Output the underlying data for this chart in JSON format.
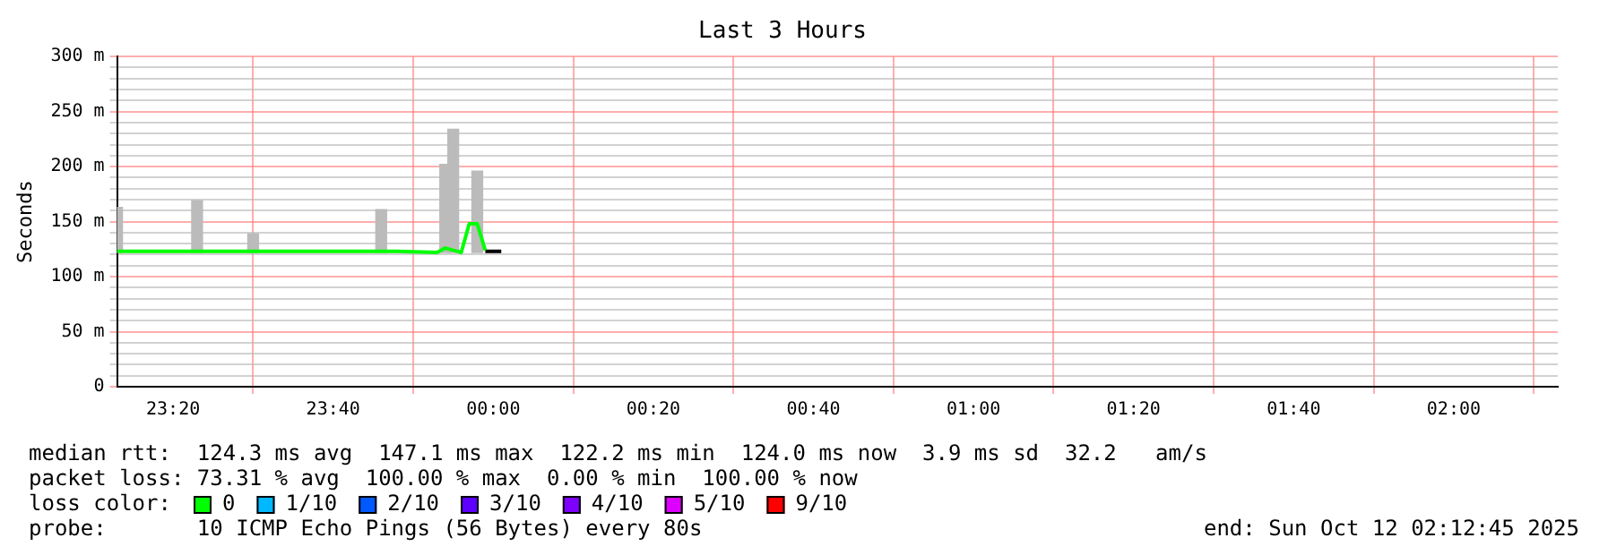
{
  "chart_data": {
    "type": "line",
    "title": "Last 3 Hours",
    "ylabel": "Seconds",
    "legend_title": "loss color:",
    "legend": "bottom",
    "grid": true,
    "marker": "none",
    "line_style": "solid",
    "xlim": [
      "2025-10-11T23:13",
      "2025-10-12T02:13"
    ],
    "xticks": [
      {
        "value": "2025-10-11T23:20",
        "label": "23:20"
      },
      {
        "value": "2025-10-11T23:40",
        "label": "23:40"
      },
      {
        "value": "2025-10-12T00:00",
        "label": "00:00"
      },
      {
        "value": "2025-10-12T00:20",
        "label": "00:20"
      },
      {
        "value": "2025-10-12T00:40",
        "label": "00:40"
      },
      {
        "value": "2025-10-12T01:00",
        "label": "01:00"
      },
      {
        "value": "2025-10-12T01:20",
        "label": "01:20"
      },
      {
        "value": "2025-10-12T01:40",
        "label": "01:40"
      },
      {
        "value": "2025-10-12T02:00",
        "label": "02:00"
      }
    ],
    "ylim": [
      0,
      300
    ],
    "yticks": [
      0,
      {
        "value": 10,
        "label": null
      },
      {
        "value": 20,
        "label": null
      },
      {
        "value": 30,
        "label": null
      },
      {
        "value": 40,
        "label": null
      },
      {
        "value": 50,
        "label": "50 m"
      },
      {
        "value": 60,
        "label": null
      },
      {
        "value": 70,
        "label": null
      },
      {
        "value": 80,
        "label": null
      },
      {
        "value": 90,
        "label": null
      },
      {
        "value": 100,
        "label": "100 m"
      },
      {
        "value": 110,
        "label": null
      },
      {
        "value": 120,
        "label": null
      },
      {
        "value": 130,
        "label": null
      },
      {
        "value": 140,
        "label": null
      },
      {
        "value": 150,
        "label": "150 m"
      },
      {
        "value": 160,
        "label": null
      },
      {
        "value": 170,
        "label": null
      },
      {
        "value": 180,
        "label": null
      },
      {
        "value": 190,
        "label": null
      },
      {
        "value": 200,
        "label": "200 m"
      },
      {
        "value": 210,
        "label": null
      },
      {
        "value": 220,
        "label": null
      },
      {
        "value": 230,
        "label": null
      },
      {
        "value": 240,
        "label": null
      },
      {
        "value": 250,
        "label": "250 m"
      },
      {
        "value": 260,
        "label": null
      },
      {
        "value": 270,
        "label": null
      },
      {
        "value": 280,
        "label": null
      },
      {
        "value": 290,
        "label": null
      },
      {
        "value": 300,
        "label": "300 m"
      }
    ],
    "series": [
      {
        "type": "bar",
        "color": "#bbbbbb",
        "x": [
          "2025-10-11T23:13",
          "2025-10-11T23:23",
          "2025-10-11T23:30",
          "2025-10-11T23:46",
          "2025-10-11T23:54",
          "2025-10-11T23:55",
          "2025-10-11T23:58"
        ],
        "base": [
          122,
          122,
          122,
          122,
          122,
          122,
          122
        ],
        "values": [
          41,
          47,
          17,
          39,
          80,
          112,
          74
        ]
      },
      {
        "name": "0",
        "color": "#00ff00",
        "x": [
          "2025-10-11T23:13",
          "2025-10-11T23:18",
          "2025-10-11T23:24",
          "2025-10-11T23:30",
          "2025-10-11T23:36",
          "2025-10-11T23:42",
          "2025-10-11T23:48",
          "2025-10-11T23:53",
          "2025-10-11T23:54",
          "2025-10-11T23:56",
          "2025-10-11T23:57",
          "2025-10-11T23:58",
          "2025-10-11T23:59"
        ],
        "values": [
          123,
          123,
          123,
          123,
          123,
          123,
          123,
          122,
          126,
          122,
          148,
          148,
          124
        ]
      },
      {
        "color": "#000000",
        "x": [
          "2025-10-11T23:59",
          "2025-10-12T00:01"
        ],
        "values": [
          123,
          123
        ]
      },
      {
        "name": "1/10",
        "color": "#00b8ff"
      },
      {
        "name": "2/10",
        "color": "#0059ff"
      },
      {
        "name": "3/10",
        "color": "#5e00ff"
      },
      {
        "name": "4/10",
        "color": "#7e00ff"
      },
      {
        "name": "5/10",
        "color": "#dd00ff"
      },
      {
        "name": "9/10",
        "color": "#ff0000"
      }
    ],
    "annotations": [
      "median rtt:  124.3 ms avg  147.1 ms max  122.2 ms min  124.0 ms now  3.9 ms sd  32.2   am/s",
      "packet loss: 73.31 % avg  100.00 % max  0.00 % min  100.00 % now",
      "probe:       10 ICMP Echo Pings (56 Bytes) every 80s",
      "end: Sun Oct 12 02:12:45 2025"
    ]
  }
}
